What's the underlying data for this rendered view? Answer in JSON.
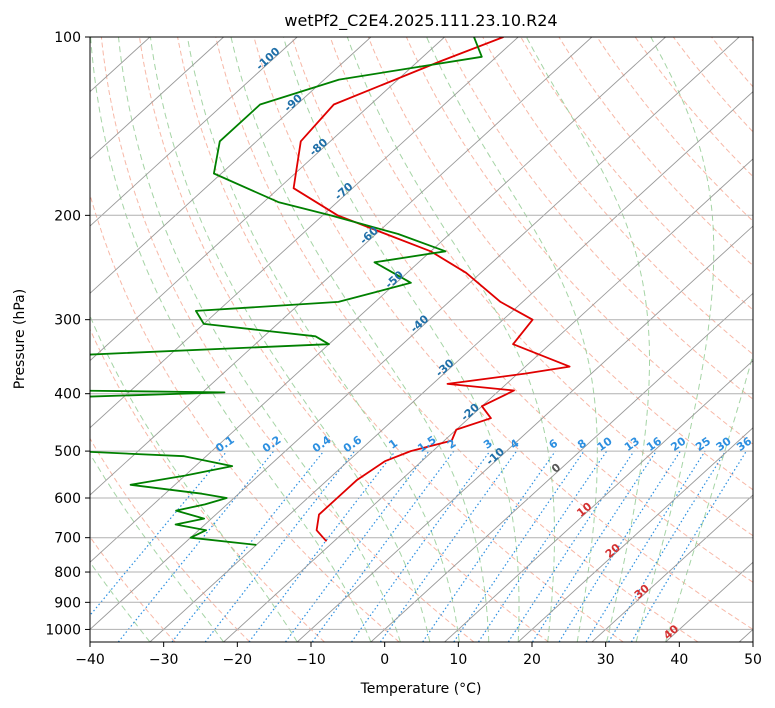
{
  "chart_data": {
    "type": "line",
    "title": "wetPf2_C2E4.2025.111.23.10.R24",
    "xlabel": "Temperature (°C)",
    "ylabel": "Pressure (hPa)",
    "xlim": [
      -40,
      50
    ],
    "ylim": [
      1050,
      100
    ],
    "y_scale": "log",
    "x_ticks": [
      "−40",
      "−30",
      "−20",
      "−10",
      "0",
      "10",
      "20",
      "30",
      "40",
      "50"
    ],
    "y_ticks": [
      "100",
      "200",
      "300",
      "400",
      "500",
      "600",
      "700",
      "800",
      "900",
      "1000"
    ],
    "grid": true,
    "colors": {
      "temperature": "#e00000",
      "dewpoint": "#008000",
      "isotherm_label": "#1f6fa8",
      "dry_adiabat": "#f4a08a",
      "moist_adiabat": "#8fc98f",
      "mixing_ratio": "#2c8fe0",
      "mixing_ratio_label": "#2c8fe0",
      "isotherm": "#999999",
      "moist_label": "#d43030"
    },
    "series": [
      {
        "key": "temperature",
        "pressure": [
          100,
          110,
          130,
          150,
          180,
          200,
          230,
          250,
          280,
          300,
          330,
          360,
          370,
          385,
          395,
          420,
          440,
          460,
          480,
          500,
          520,
          560,
          600,
          640,
          680,
          700,
          710
        ],
        "temperature": [
          -72,
          -77,
          -85,
          -84,
          -78,
          -68,
          -50,
          -42,
          -33,
          -26,
          -25,
          -14,
          -19,
          -28,
          -18,
          -20,
          -17,
          -20,
          -19,
          -23,
          -25,
          -26,
          -26,
          -26,
          -24,
          -22,
          -21
        ]
      },
      {
        "key": "dewpoint",
        "pressure": [
          100,
          108,
          118,
          130,
          150,
          170,
          190,
          200,
          215,
          230,
          240,
          260,
          280,
          290,
          305,
          320,
          330,
          345,
          365,
          380,
          395,
          398,
          410,
          430,
          460,
          490,
          495,
          510,
          530,
          550,
          570,
          590,
          600,
          615,
          630,
          650,
          665,
          680,
          700,
          720
        ],
        "temperature": [
          -76,
          -72,
          -88,
          -95,
          -95,
          -91,
          -78,
          -69,
          -57,
          -48,
          -56,
          -48,
          -55,
          -73,
          -70,
          -53,
          -50,
          -84,
          -90,
          -90,
          -78,
          -57,
          -89,
          -90,
          -92,
          -93,
          -77,
          -53,
          -45,
          -50,
          -56,
          -45,
          -41,
          -43,
          -46,
          -41,
          -44,
          -39,
          -40,
          -30
        ]
      }
    ],
    "isotherm_labels": [
      "-100",
      "-90",
      "-80",
      "-70",
      "-60",
      "-50",
      "-40",
      "-30",
      "-20",
      "-10"
    ],
    "mixing_ratio_labels": [
      "0.1",
      "0.2",
      "0.4",
      "0.6",
      "1",
      "1.5",
      "2",
      "3",
      "4",
      "6",
      "8",
      "10",
      "13",
      "16",
      "20",
      "25",
      "30",
      "36"
    ],
    "moist_adiabat_labels": [
      "0",
      "10",
      "20",
      "30",
      "40"
    ]
  }
}
